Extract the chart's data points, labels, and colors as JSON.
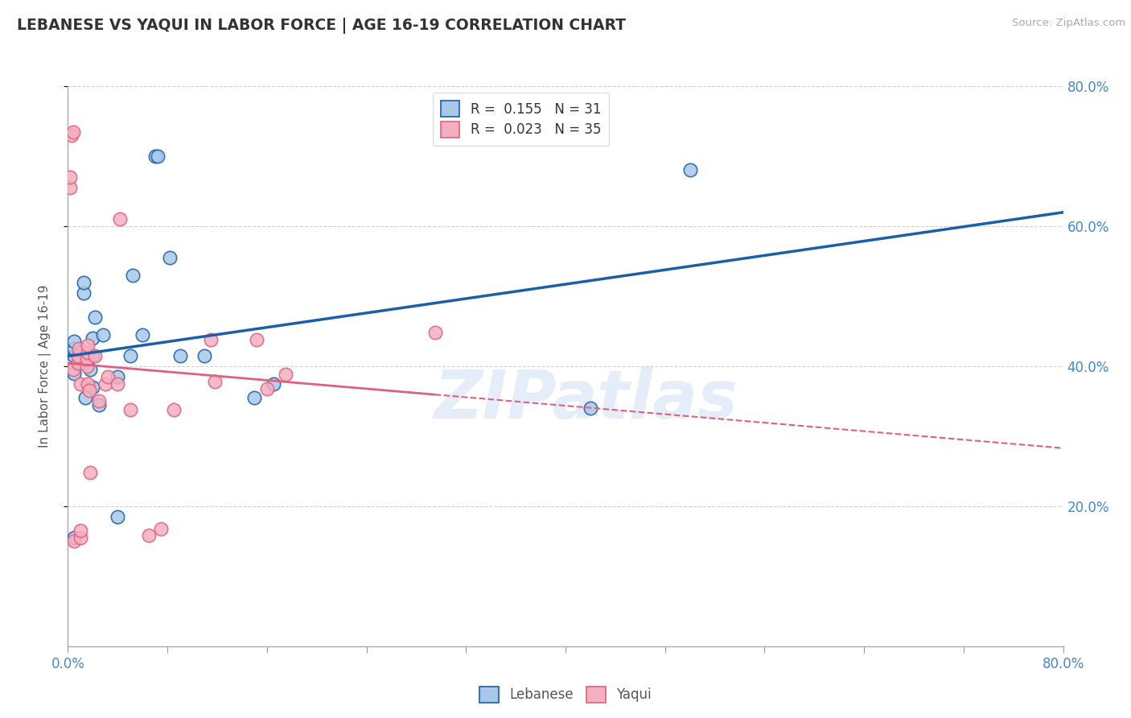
{
  "title": "LEBANESE VS YAQUI IN LABOR FORCE | AGE 16-19 CORRELATION CHART",
  "source": "Source: ZipAtlas.com",
  "ylabel": "In Labor Force | Age 16-19",
  "xlim": [
    0.0,
    0.8
  ],
  "ylim": [
    0.0,
    0.8
  ],
  "yticks_right": [
    0.2,
    0.4,
    0.6,
    0.8
  ],
  "yticklabels_right": [
    "20.0%",
    "40.0%",
    "60.0%",
    "80.0%"
  ],
  "xtick_positions": [
    0.0,
    0.08,
    0.16,
    0.24,
    0.32,
    0.4,
    0.48,
    0.56,
    0.64,
    0.72,
    0.8
  ],
  "xlabels_shown": {
    "0": "0.0%",
    "10": "80.0%"
  },
  "legend_labels": [
    "Lebanese",
    "Yaqui"
  ],
  "R_lebanese": 0.155,
  "N_lebanese": 31,
  "R_yaqui": 0.023,
  "N_yaqui": 35,
  "lebanese_color": "#a8c8e8",
  "yaqui_color": "#f4afc0",
  "lebanese_line_color": "#1a5fa8",
  "yaqui_line_color": "#e06080",
  "watermark_text": "ZIPatlas",
  "background_color": "#ffffff",
  "grid_color": "#cccccc",
  "title_color": "#333333",
  "tick_color_right": "#4488cc",
  "tick_color_bottom": "#4488cc",
  "lebanese_x": [
    0.005,
    0.005,
    0.005,
    0.005,
    0.005,
    0.01,
    0.012,
    0.013,
    0.013,
    0.014,
    0.018,
    0.02,
    0.02,
    0.022,
    0.02,
    0.025,
    0.028,
    0.04,
    0.04,
    0.05,
    0.052,
    0.06,
    0.07,
    0.072,
    0.082,
    0.09,
    0.11,
    0.15,
    0.165,
    0.42,
    0.5
  ],
  "lebanese_y": [
    0.415,
    0.425,
    0.435,
    0.39,
    0.155,
    0.405,
    0.415,
    0.505,
    0.52,
    0.355,
    0.395,
    0.415,
    0.44,
    0.47,
    0.37,
    0.345,
    0.445,
    0.385,
    0.185,
    0.415,
    0.53,
    0.445,
    0.7,
    0.7,
    0.555,
    0.415,
    0.415,
    0.355,
    0.375,
    0.34,
    0.68
  ],
  "yaqui_x": [
    0.002,
    0.002,
    0.003,
    0.004,
    0.004,
    0.005,
    0.008,
    0.008,
    0.009,
    0.01,
    0.01,
    0.01,
    0.015,
    0.015,
    0.016,
    0.016,
    0.016,
    0.017,
    0.018,
    0.022,
    0.025,
    0.03,
    0.032,
    0.04,
    0.042,
    0.05,
    0.065,
    0.075,
    0.085,
    0.115,
    0.118,
    0.152,
    0.16,
    0.175,
    0.295
  ],
  "yaqui_y": [
    0.655,
    0.67,
    0.73,
    0.735,
    0.395,
    0.15,
    0.405,
    0.415,
    0.425,
    0.375,
    0.155,
    0.165,
    0.4,
    0.41,
    0.42,
    0.43,
    0.375,
    0.365,
    0.248,
    0.415,
    0.35,
    0.375,
    0.385,
    0.375,
    0.61,
    0.338,
    0.158,
    0.168,
    0.338,
    0.438,
    0.378,
    0.438,
    0.368,
    0.388,
    0.448
  ]
}
